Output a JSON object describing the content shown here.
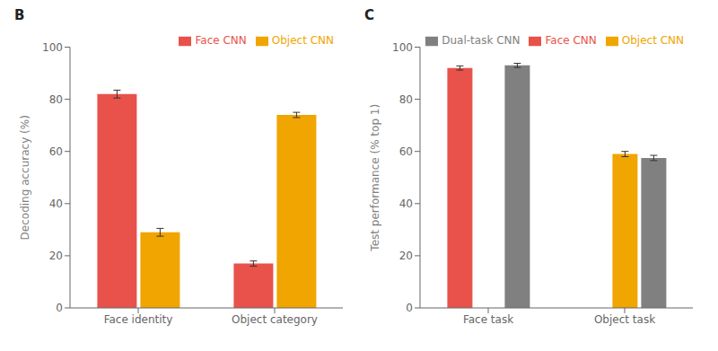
{
  "chart_data": [
    {
      "type": "bar",
      "title": "B",
      "categories": [
        "Face identity",
        "Object category"
      ],
      "series": [
        {
          "name": "Face CNN",
          "color": "#E8524A",
          "values": [
            82,
            17
          ],
          "errors": [
            1.5,
            1.0
          ]
        },
        {
          "name": "Object CNN",
          "color": "#F0A500",
          "values": [
            29,
            74
          ],
          "errors": [
            1.5,
            1.0
          ]
        }
      ],
      "ylabel": "Decoding accuracy (%)",
      "ylim": [
        0,
        100
      ],
      "yticks": [
        0,
        20,
        40,
        60,
        80,
        100
      ],
      "legend": "upper right"
    },
    {
      "type": "bar",
      "title": "C",
      "categories": [
        "Face task",
        "Object task"
      ],
      "series": [
        {
          "name": "Face CNN",
          "color": "#E8524A",
          "values": [
            92,
            null
          ],
          "errors": [
            0.8,
            null
          ]
        },
        {
          "name": "Object CNN",
          "color": "#F0A500",
          "values": [
            null,
            59
          ],
          "errors": [
            null,
            1.0
          ]
        },
        {
          "name": "Dual-task CNN",
          "color": "#808080",
          "values": [
            93,
            57.5
          ],
          "errors": [
            0.8,
            1.0
          ]
        }
      ],
      "ylabel": "Test performance (% top 1)",
      "ylim": [
        0,
        100
      ],
      "yticks": [
        0,
        20,
        40,
        60,
        80,
        100
      ],
      "legend": "upper right"
    }
  ]
}
